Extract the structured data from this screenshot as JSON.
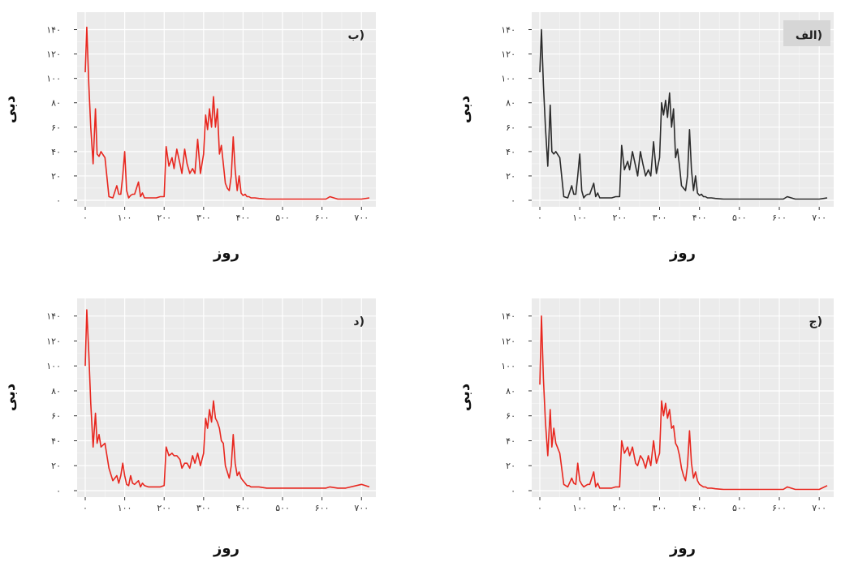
{
  "chart_data": [
    {
      "type": "line",
      "panel_label": "الف)",
      "xlabel": "روز",
      "ylabel": "دبی",
      "xlim": [
        0,
        720
      ],
      "ylim": [
        0,
        145
      ],
      "xticks": [
        0,
        100,
        200,
        300,
        400,
        500,
        600,
        700
      ],
      "xtick_labels": [
        "۰",
        "۱۰۰",
        "۲۰۰",
        "۳۰۰",
        "۴۰۰",
        "۵۰۰",
        "۶۰۰",
        "۷۰۰"
      ],
      "yticks": [
        0,
        20,
        40,
        60,
        80,
        100,
        120,
        140
      ],
      "ytick_labels": [
        "۰",
        "۲۰",
        "۴۰",
        "۶۰",
        "۸۰",
        "۱۰۰",
        "۱۲۰",
        "۱۴۰"
      ],
      "grid": true,
      "line_color": "#2b2b2b",
      "series": [
        {
          "x": [
            0,
            4,
            9,
            14,
            20,
            26,
            30,
            35,
            40,
            50,
            60,
            70,
            80,
            85,
            90,
            95,
            100,
            105,
            110,
            115,
            120,
            125,
            135,
            140,
            145,
            150,
            160,
            170,
            180,
            190,
            200,
            205,
            212,
            220,
            225,
            232,
            240,
            245,
            252,
            258,
            265,
            272,
            278,
            285,
            292,
            300,
            305,
            310,
            315,
            320,
            325,
            330,
            335,
            340,
            345,
            350,
            355,
            360,
            365,
            370,
            375,
            380,
            385,
            390,
            395,
            400,
            405,
            410,
            415,
            420,
            430,
            440,
            460,
            500,
            550,
            600,
            610,
            620,
            640,
            660,
            700,
            720
          ],
          "y": [
            105,
            140,
            95,
            60,
            28,
            78,
            40,
            38,
            40,
            35,
            3,
            2,
            12,
            5,
            5,
            20,
            38,
            8,
            2,
            4,
            5,
            5,
            14,
            3,
            6,
            2,
            2,
            2,
            2,
            3,
            3,
            45,
            25,
            32,
            25,
            40,
            28,
            20,
            40,
            30,
            20,
            25,
            20,
            48,
            22,
            35,
            80,
            70,
            82,
            68,
            88,
            60,
            75,
            35,
            42,
            28,
            12,
            10,
            8,
            20,
            58,
            25,
            8,
            20,
            6,
            4,
            5,
            3,
            3,
            2,
            2,
            1.5,
            1,
            1,
            1,
            1,
            1,
            3,
            1,
            1,
            1,
            2
          ]
        }
      ]
    },
    {
      "type": "line",
      "panel_label": "ب)",
      "xlabel": "روز",
      "ylabel": "دبی",
      "xlim": [
        0,
        720
      ],
      "ylim": [
        0,
        145
      ],
      "xticks": [
        0,
        100,
        200,
        300,
        400,
        500,
        600,
        700
      ],
      "xtick_labels": [
        "۰",
        "۱۰۰",
        "۲۰۰",
        "۳۰۰",
        "۴۰۰",
        "۵۰۰",
        "۶۰۰",
        "۷۰۰"
      ],
      "yticks": [
        0,
        20,
        40,
        60,
        80,
        100,
        120,
        140
      ],
      "ytick_labels": [
        "۰",
        "۲۰",
        "۴۰",
        "۶۰",
        "۸۰",
        "۱۰۰",
        "۱۲۰",
        "۱۴۰"
      ],
      "grid": true,
      "line_color": "#e8271f",
      "series": [
        {
          "x": [
            0,
            4,
            9,
            14,
            20,
            26,
            30,
            35,
            40,
            50,
            60,
            70,
            80,
            85,
            90,
            95,
            100,
            105,
            110,
            115,
            120,
            125,
            135,
            140,
            145,
            150,
            160,
            170,
            180,
            190,
            200,
            205,
            212,
            220,
            225,
            232,
            240,
            245,
            252,
            258,
            265,
            272,
            278,
            285,
            292,
            300,
            305,
            310,
            315,
            320,
            325,
            330,
            335,
            340,
            345,
            350,
            355,
            360,
            365,
            370,
            375,
            380,
            385,
            390,
            395,
            400,
            405,
            410,
            415,
            420,
            430,
            440,
            460,
            500,
            550,
            600,
            610,
            620,
            640,
            660,
            700,
            720
          ],
          "y": [
            105,
            142,
            95,
            60,
            30,
            75,
            38,
            36,
            40,
            35,
            3,
            2,
            12,
            5,
            5,
            20,
            40,
            8,
            2,
            4,
            5,
            5,
            15,
            3,
            6,
            2,
            2,
            2,
            2,
            3,
            3,
            44,
            28,
            35,
            26,
            42,
            30,
            22,
            42,
            30,
            22,
            26,
            22,
            50,
            22,
            38,
            70,
            58,
            75,
            60,
            85,
            60,
            75,
            38,
            45,
            30,
            14,
            10,
            8,
            20,
            52,
            25,
            8,
            20,
            6,
            4,
            5,
            3,
            3,
            2,
            2,
            1.5,
            1,
            1,
            1,
            1,
            1,
            3,
            1,
            1,
            1,
            2
          ]
        }
      ]
    },
    {
      "type": "line",
      "panel_label": "ج)",
      "xlabel": "روز",
      "ylabel": "دبی",
      "xlim": [
        0,
        720
      ],
      "ylim": [
        0,
        145
      ],
      "xticks": [
        0,
        100,
        200,
        300,
        400,
        500,
        600,
        700
      ],
      "xtick_labels": [
        "۰",
        "۱۰۰",
        "۲۰۰",
        "۳۰۰",
        "۴۰۰",
        "۵۰۰",
        "۶۰۰",
        "۷۰۰"
      ],
      "yticks": [
        0,
        20,
        40,
        60,
        80,
        100,
        120,
        140
      ],
      "ytick_labels": [
        "۰",
        "۲۰",
        "۴۰",
        "۶۰",
        "۸۰",
        "۱۰۰",
        "۱۲۰",
        "۱۴۰"
      ],
      "grid": true,
      "line_color": "#e8271f",
      "series": [
        {
          "x": [
            0,
            4,
            9,
            14,
            20,
            26,
            30,
            35,
            40,
            50,
            60,
            70,
            80,
            85,
            90,
            95,
            100,
            105,
            110,
            115,
            120,
            125,
            135,
            140,
            145,
            150,
            160,
            170,
            180,
            190,
            200,
            205,
            212,
            220,
            225,
            232,
            240,
            245,
            252,
            258,
            265,
            272,
            278,
            285,
            292,
            300,
            305,
            310,
            315,
            320,
            325,
            330,
            335,
            340,
            345,
            350,
            355,
            360,
            365,
            370,
            375,
            380,
            385,
            390,
            395,
            400,
            405,
            410,
            415,
            420,
            430,
            440,
            460,
            500,
            550,
            600,
            610,
            620,
            640,
            660,
            700,
            720
          ],
          "y": [
            85,
            140,
            90,
            55,
            28,
            65,
            35,
            50,
            38,
            30,
            5,
            3,
            10,
            6,
            5,
            22,
            8,
            5,
            3,
            4,
            5,
            5,
            15,
            3,
            6,
            2,
            2,
            2,
            2,
            3,
            3,
            40,
            30,
            35,
            28,
            35,
            22,
            20,
            28,
            25,
            18,
            28,
            20,
            40,
            22,
            30,
            72,
            60,
            70,
            58,
            65,
            50,
            52,
            38,
            35,
            28,
            18,
            12,
            8,
            20,
            48,
            22,
            10,
            15,
            8,
            5,
            4,
            3,
            3,
            2,
            2,
            1.5,
            1,
            1,
            1,
            1,
            1,
            3,
            1,
            1,
            1,
            4
          ]
        }
      ]
    },
    {
      "type": "line",
      "panel_label": "د)",
      "xlabel": "روز",
      "ylabel": "دبی",
      "xlim": [
        0,
        720
      ],
      "ylim": [
        0,
        145
      ],
      "xticks": [
        0,
        100,
        200,
        300,
        400,
        500,
        600,
        700
      ],
      "xtick_labels": [
        "۰",
        "۱۰۰",
        "۲۰۰",
        "۳۰۰",
        "۴۰۰",
        "۵۰۰",
        "۶۰۰",
        "۷۰۰"
      ],
      "yticks": [
        0,
        20,
        40,
        60,
        80,
        100,
        120,
        140
      ],
      "ytick_labels": [
        "۰",
        "۲۰",
        "۴۰",
        "۶۰",
        "۸۰",
        "۱۰۰",
        "۱۲۰",
        "۱۴۰"
      ],
      "grid": true,
      "line_color": "#e8271f",
      "series": [
        {
          "x": [
            0,
            4,
            9,
            14,
            20,
            26,
            30,
            35,
            40,
            50,
            60,
            70,
            80,
            85,
            90,
            95,
            100,
            105,
            110,
            115,
            120,
            125,
            135,
            140,
            145,
            150,
            160,
            170,
            180,
            190,
            200,
            205,
            212,
            220,
            225,
            232,
            240,
            245,
            252,
            258,
            265,
            272,
            278,
            285,
            292,
            300,
            305,
            310,
            315,
            320,
            325,
            330,
            335,
            340,
            345,
            350,
            355,
            360,
            365,
            370,
            375,
            380,
            385,
            390,
            395,
            400,
            405,
            410,
            415,
            420,
            430,
            440,
            460,
            500,
            550,
            600,
            610,
            620,
            640,
            660,
            700,
            720
          ],
          "y": [
            100,
            145,
            110,
            70,
            35,
            62,
            38,
            45,
            35,
            38,
            18,
            8,
            12,
            6,
            12,
            22,
            12,
            5,
            4,
            12,
            6,
            5,
            8,
            3,
            6,
            4,
            3,
            3,
            3,
            3,
            4,
            35,
            28,
            30,
            28,
            28,
            25,
            18,
            22,
            22,
            18,
            28,
            22,
            30,
            20,
            30,
            58,
            50,
            65,
            55,
            72,
            58,
            55,
            50,
            40,
            38,
            20,
            15,
            10,
            20,
            45,
            22,
            12,
            15,
            10,
            8,
            6,
            4,
            4,
            3,
            3,
            3,
            2,
            2,
            2,
            2,
            2,
            3,
            2,
            2,
            5,
            3
          ]
        }
      ]
    }
  ]
}
